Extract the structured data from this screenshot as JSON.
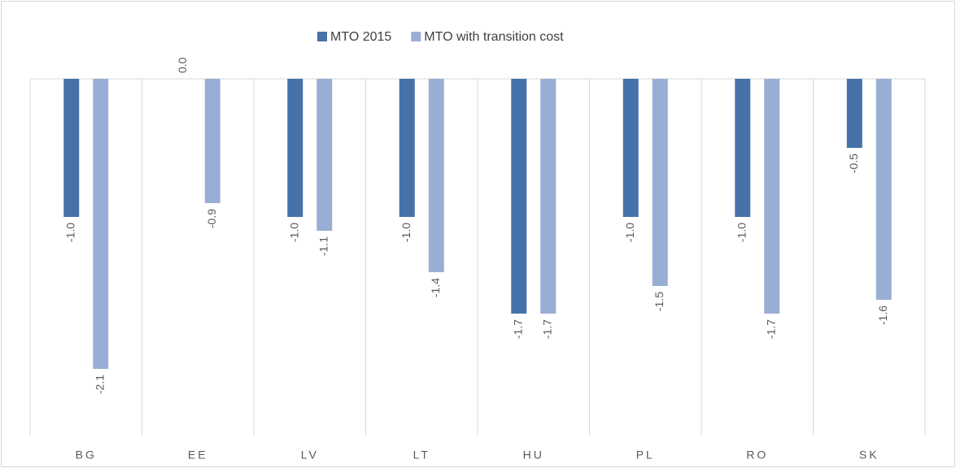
{
  "chart_data": {
    "type": "bar",
    "categories": [
      "BG",
      "EE",
      "LV",
      "LT",
      "HU",
      "PL",
      "RO",
      "SK"
    ],
    "series": [
      {
        "name": "MTO 2015",
        "color": "#4672a9",
        "values": [
          -1,
          0,
          -1,
          -1,
          -1.7,
          -1,
          -1,
          -0.5
        ],
        "value_labels": [
          "-1.0",
          "0.0",
          "-1.0",
          "-1.0",
          "-1.7",
          "-1.0",
          "-1.0",
          "-0.5"
        ]
      },
      {
        "name": "MTO with transition cost",
        "color": "#99aed5",
        "values": [
          -2.1,
          -0.9,
          -1.1,
          -1.4,
          -1.7,
          -1.5,
          -1.7,
          -1.6
        ],
        "value_labels": [
          "-2.1",
          "-0.9",
          "-1.1",
          "-1.4",
          "-1.7",
          "-1.5",
          "-1.7",
          "-1.6"
        ]
      }
    ],
    "ylim": [
      -2.5,
      0
    ]
  }
}
